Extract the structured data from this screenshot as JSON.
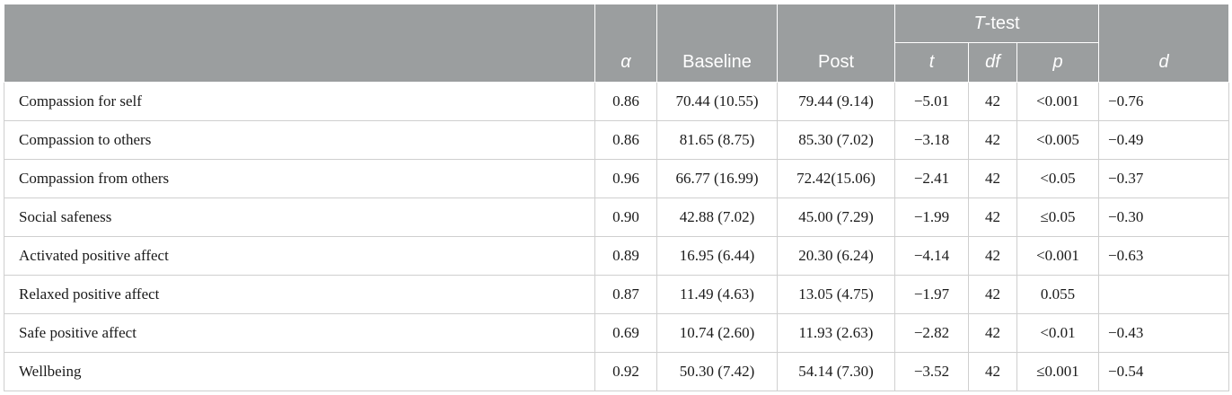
{
  "header": {
    "alpha": "α",
    "baseline": "Baseline",
    "post": "Post",
    "ttest_italic": "T",
    "ttest_rest": "-test",
    "t": "t",
    "df": "df",
    "p": "p",
    "d": "d"
  },
  "rows": [
    {
      "label": "Compassion for self",
      "alpha": "0.86",
      "baseline": "70.44 (10.55)",
      "post": "79.44 (9.14)",
      "t": "−5.01",
      "df": "42",
      "p": "<0.001",
      "d": "−0.76"
    },
    {
      "label": "Compassion to others",
      "alpha": "0.86",
      "baseline": "81.65 (8.75)",
      "post": "85.30 (7.02)",
      "t": "−3.18",
      "df": "42",
      "p": "<0.005",
      "d": "−0.49"
    },
    {
      "label": "Compassion from others",
      "alpha": "0.96",
      "baseline": "66.77 (16.99)",
      "post": "72.42(15.06)",
      "t": "−2.41",
      "df": "42",
      "p": "<0.05",
      "d": "−0.37"
    },
    {
      "label": "Social safeness",
      "alpha": "0.90",
      "baseline": "42.88 (7.02)",
      "post": "45.00 (7.29)",
      "t": "−1.99",
      "df": "42",
      "p": "≤0.05",
      "d": "−0.30"
    },
    {
      "label": "Activated positive affect",
      "alpha": "0.89",
      "baseline": "16.95 (6.44)",
      "post": "20.30 (6.24)",
      "t": "−4.14",
      "df": "42",
      "p": "<0.001",
      "d": "−0.63"
    },
    {
      "label": "Relaxed positive affect",
      "alpha": "0.87",
      "baseline": "11.49 (4.63)",
      "post": "13.05 (4.75)",
      "t": "−1.97",
      "df": "42",
      "p": "0.055",
      "d": ""
    },
    {
      "label": "Safe positive affect",
      "alpha": "0.69",
      "baseline": "10.74 (2.60)",
      "post": "11.93 (2.63)",
      "t": "−2.82",
      "df": "42",
      "p": "<0.01",
      "d": "−0.43"
    },
    {
      "label": "Wellbeing",
      "alpha": "0.92",
      "baseline": "50.30 (7.42)",
      "post": "54.14 (7.30)",
      "t": "−3.52",
      "df": "42",
      "p": "≤0.001",
      "d": "−0.54"
    }
  ]
}
